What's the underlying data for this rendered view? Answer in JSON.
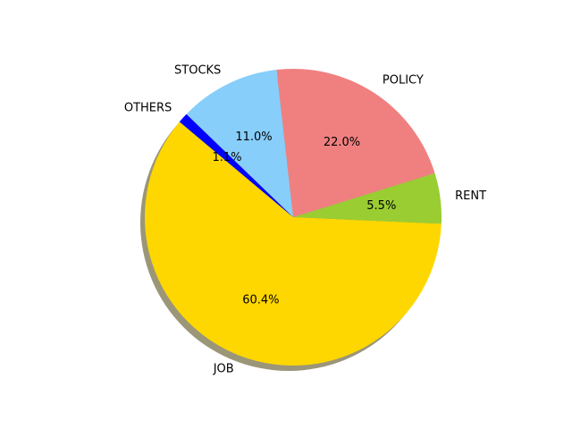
{
  "chart_data": {
    "type": "pie",
    "title": "",
    "shadow": true,
    "start_angle_deg": 140,
    "direction": "counterclockwise",
    "slices": [
      {
        "label": "JOB",
        "value": 60.4,
        "pct_label": "60.4%",
        "color": "#FFD700"
      },
      {
        "label": "RENT",
        "value": 5.5,
        "pct_label": "5.5%",
        "color": "#9ACD32"
      },
      {
        "label": "POLICY",
        "value": 22.0,
        "pct_label": "22.0%",
        "color": "#F08080"
      },
      {
        "label": "STOCKS",
        "value": 11.0,
        "pct_label": "11.0%",
        "color": "#87CEFA"
      },
      {
        "label": "OTHERS",
        "value": 1.1,
        "pct_label": "1.1%",
        "color": "#0000FF"
      }
    ]
  }
}
